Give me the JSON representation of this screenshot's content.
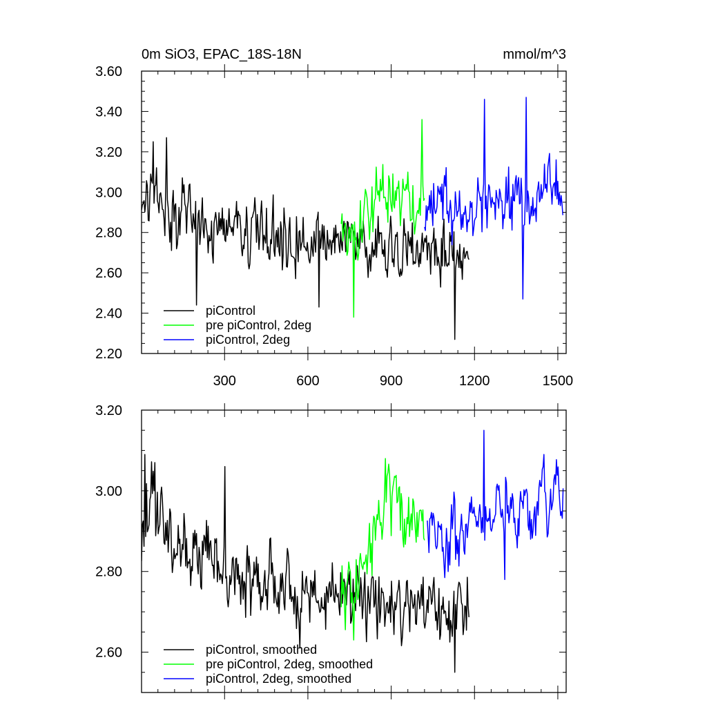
{
  "page": {
    "title": "0m SiO3, EPAC_18S-18N",
    "units": "mmol/m^3"
  },
  "chart_data": [
    {
      "type": "line",
      "title": "0m SiO3, EPAC_18S-18N",
      "units_label": "mmol/m^3",
      "xlim": [
        1,
        1530
      ],
      "ylim": [
        2.2,
        3.6
      ],
      "xticks": [
        300,
        600,
        900,
        1200,
        1500
      ],
      "xtick_labels": [
        "300",
        "600",
        "900",
        "1200",
        "1500"
      ],
      "yticks": [
        2.2,
        2.4,
        2.6,
        2.8,
        3.0,
        3.2,
        3.4,
        3.6
      ],
      "ytick_labels": [
        "2.20",
        "2.40",
        "2.60",
        "2.80",
        "3.00",
        "3.20",
        "3.40",
        "3.60"
      ],
      "legend_position": "bottom-left",
      "series": [
        {
          "name": "piControl",
          "color": "#000000",
          "x_start": 1,
          "x_end": 1180,
          "anchors": [
            [
              1,
              2.93
            ],
            [
              40,
              3.05
            ],
            [
              100,
              2.88
            ],
            [
              200,
              2.86
            ],
            [
              300,
              2.83
            ],
            [
              400,
              2.81
            ],
            [
              500,
              2.78
            ],
            [
              600,
              2.76
            ],
            [
              700,
              2.75
            ],
            [
              800,
              2.74
            ],
            [
              900,
              2.73
            ],
            [
              1000,
              2.72
            ],
            [
              1100,
              2.71
            ],
            [
              1180,
              2.7
            ]
          ],
          "noise": 0.11,
          "spikes": [
            [
              42,
              3.25
            ],
            [
              90,
              3.27
            ],
            [
              200,
              2.44
            ],
            [
              640,
              2.43
            ],
            [
              1130,
              2.27
            ]
          ]
        },
        {
          "name": "pre piControl, 2deg",
          "color": "#00ff00",
          "x_start": 720,
          "x_end": 1020,
          "anchors": [
            [
              720,
              2.76
            ],
            [
              780,
              2.78
            ],
            [
              830,
              2.93
            ],
            [
              880,
              2.99
            ],
            [
              940,
              2.93
            ],
            [
              990,
              2.95
            ],
            [
              1020,
              2.92
            ]
          ],
          "noise": 0.11,
          "spikes": [
            [
              765,
              2.38
            ],
            [
              1010,
              3.36
            ]
          ]
        },
        {
          "name": "piControl, 2deg",
          "color": "#0000ff",
          "x_start": 1020,
          "x_end": 1520,
          "anchors": [
            [
              1020,
              2.93
            ],
            [
              1100,
              2.92
            ],
            [
              1200,
              2.94
            ],
            [
              1300,
              2.96
            ],
            [
              1400,
              2.97
            ],
            [
              1520,
              3.0
            ]
          ],
          "noise": 0.11,
          "spikes": [
            [
              1235,
              3.46
            ],
            [
              1375,
              2.47
            ],
            [
              1385,
              3.47
            ]
          ]
        }
      ]
    },
    {
      "type": "line",
      "title": "",
      "xlim": [
        1,
        1530
      ],
      "ylim": [
        2.5,
        3.2
      ],
      "xticks": [
        300,
        600,
        900,
        1200,
        1500
      ],
      "xtick_labels": [],
      "yticks": [
        2.6,
        2.8,
        3.0,
        3.2
      ],
      "ytick_labels": [
        "2.60",
        "2.80",
        "3.00",
        "3.20"
      ],
      "legend_position": "bottom-left",
      "series": [
        {
          "name": "piControl, smoothed",
          "color": "#000000",
          "x_start": 1,
          "x_end": 1180,
          "anchors": [
            [
              1,
              2.93
            ],
            [
              40,
              3.0
            ],
            [
              100,
              2.88
            ],
            [
              200,
              2.84
            ],
            [
              300,
              2.8
            ],
            [
              400,
              2.78
            ],
            [
              500,
              2.76
            ],
            [
              600,
              2.74
            ],
            [
              700,
              2.75
            ],
            [
              800,
              2.73
            ],
            [
              900,
              2.73
            ],
            [
              1000,
              2.72
            ],
            [
              1100,
              2.7
            ],
            [
              1180,
              2.72
            ]
          ],
          "noise": 0.06,
          "spikes": [
            [
              12,
              3.09
            ],
            [
              50,
              3.07
            ],
            [
              300,
              3.06
            ],
            [
              570,
              2.61
            ],
            [
              1130,
              2.55
            ]
          ]
        },
        {
          "name": "pre piControl, 2deg, smoothed",
          "color": "#00ff00",
          "x_start": 720,
          "x_end": 1020,
          "anchors": [
            [
              720,
              2.76
            ],
            [
              780,
              2.76
            ],
            [
              830,
              2.86
            ],
            [
              880,
              3.0
            ],
            [
              940,
              2.91
            ],
            [
              990,
              2.93
            ],
            [
              1020,
              2.92
            ]
          ],
          "noise": 0.06,
          "spikes": [
            [
              765,
              2.63
            ],
            [
              880,
              3.08
            ]
          ]
        },
        {
          "name": "piControl, 2deg, smoothed",
          "color": "#0000ff",
          "x_start": 1030,
          "x_end": 1520,
          "anchors": [
            [
              1030,
              2.92
            ],
            [
              1100,
              2.89
            ],
            [
              1200,
              2.94
            ],
            [
              1300,
              2.95
            ],
            [
              1400,
              2.96
            ],
            [
              1520,
              2.98
            ]
          ],
          "noise": 0.06,
          "spikes": [
            [
              1235,
              3.15
            ],
            [
              1310,
              2.78
            ]
          ]
        }
      ]
    }
  ]
}
